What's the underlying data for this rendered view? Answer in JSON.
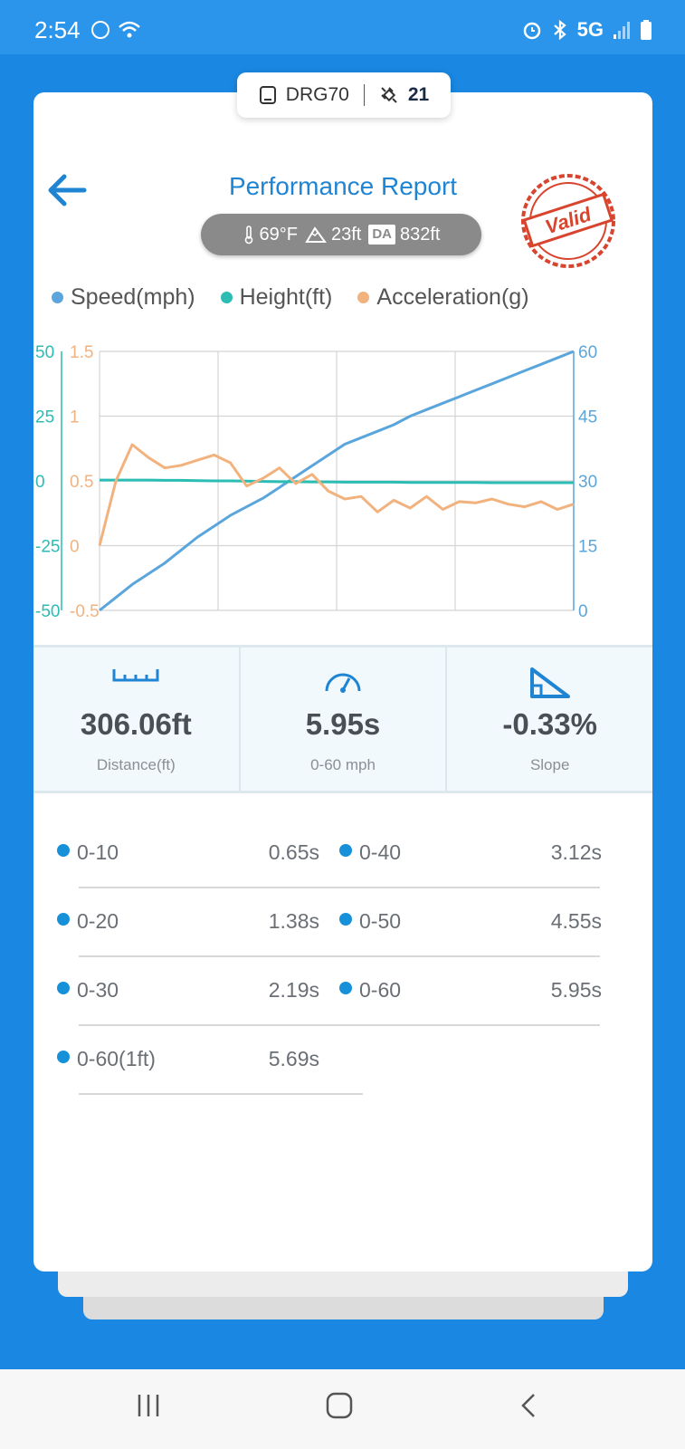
{
  "status_bar": {
    "time": "2:54",
    "network": "5G"
  },
  "device": {
    "name": "DRG70",
    "satellites": "21"
  },
  "header": {
    "title": "Performance Report",
    "stamp": "Valid"
  },
  "conditions": {
    "temperature": "69°F",
    "altitude": "23ft",
    "da_label": "DA",
    "density_altitude": "832ft"
  },
  "legend": [
    {
      "label": "Speed(mph)",
      "color": "#5aa6dc"
    },
    {
      "label": "Height(ft)",
      "color": "#2bbcb4"
    },
    {
      "label": "Acceleration(g)",
      "color": "#f2b27e"
    }
  ],
  "chart_data": {
    "type": "line",
    "left_axis_height": {
      "ticks": [
        "50",
        "25",
        "0",
        "-25",
        "-50"
      ],
      "ylim": [
        -50,
        50
      ],
      "color": "#2bbcb4"
    },
    "left_axis_accel": {
      "ticks": [
        "1.5",
        "1",
        "0.5",
        "0",
        "-0.5"
      ],
      "ylim": [
        -0.5,
        1.5
      ],
      "color": "#f2b27e"
    },
    "right_axis_speed": {
      "ticks": [
        "60",
        "45",
        "30",
        "15",
        "0"
      ],
      "ylim": [
        0,
        60
      ],
      "color": "#5aa6dc"
    },
    "grid": true,
    "series": [
      {
        "name": "Speed(mph)",
        "axis": "right",
        "color": "#5aa6dc",
        "values": [
          0,
          3,
          6,
          8.5,
          11,
          14,
          17,
          19.5,
          22,
          24,
          26,
          28.5,
          31,
          33.5,
          36,
          38.5,
          40,
          41.5,
          43,
          45,
          46.5,
          48,
          49.5,
          51,
          52.5,
          54,
          55.5,
          57,
          58.5,
          60
        ]
      },
      {
        "name": "Height(ft)",
        "axis": "left_height",
        "color": "#2bbcb4",
        "values": [
          0.3,
          0.3,
          0.3,
          0.3,
          0.2,
          0.2,
          0.1,
          0.0,
          0.0,
          -0.1,
          -0.2,
          -0.3,
          -0.3,
          -0.4,
          -0.4,
          -0.5,
          -0.5,
          -0.5,
          -0.5,
          -0.6,
          -0.6,
          -0.6,
          -0.6,
          -0.6,
          -0.7,
          -0.7,
          -0.7,
          -0.7,
          -0.7,
          -0.7
        ]
      },
      {
        "name": "Acceleration(g)",
        "axis": "left_accel",
        "color": "#f2b27e",
        "values": [
          0.0,
          0.5,
          0.78,
          0.68,
          0.6,
          0.62,
          0.66,
          0.7,
          0.64,
          0.46,
          0.52,
          0.6,
          0.48,
          0.55,
          0.42,
          0.36,
          0.38,
          0.26,
          0.35,
          0.29,
          0.38,
          0.28,
          0.34,
          0.33,
          0.36,
          0.32,
          0.3,
          0.34,
          0.28,
          0.32
        ]
      }
    ]
  },
  "stats": [
    {
      "icon": "ruler-icon",
      "value": "306.06ft",
      "label": "Distance(ft)"
    },
    {
      "icon": "speedometer-icon",
      "value": "5.95s",
      "label": "0-60 mph"
    },
    {
      "icon": "slope-icon",
      "value": "-0.33%",
      "label": "Slope"
    }
  ],
  "splits": [
    {
      "name": "0-10",
      "time": "0.65s"
    },
    {
      "name": "0-40",
      "time": "3.12s"
    },
    {
      "name": "0-20",
      "time": "1.38s"
    },
    {
      "name": "0-50",
      "time": "4.55s"
    },
    {
      "name": "0-30",
      "time": "2.19s"
    },
    {
      "name": "0-60",
      "time": "5.95s"
    },
    {
      "name": "0-60(1ft)",
      "time": "5.69s"
    }
  ]
}
